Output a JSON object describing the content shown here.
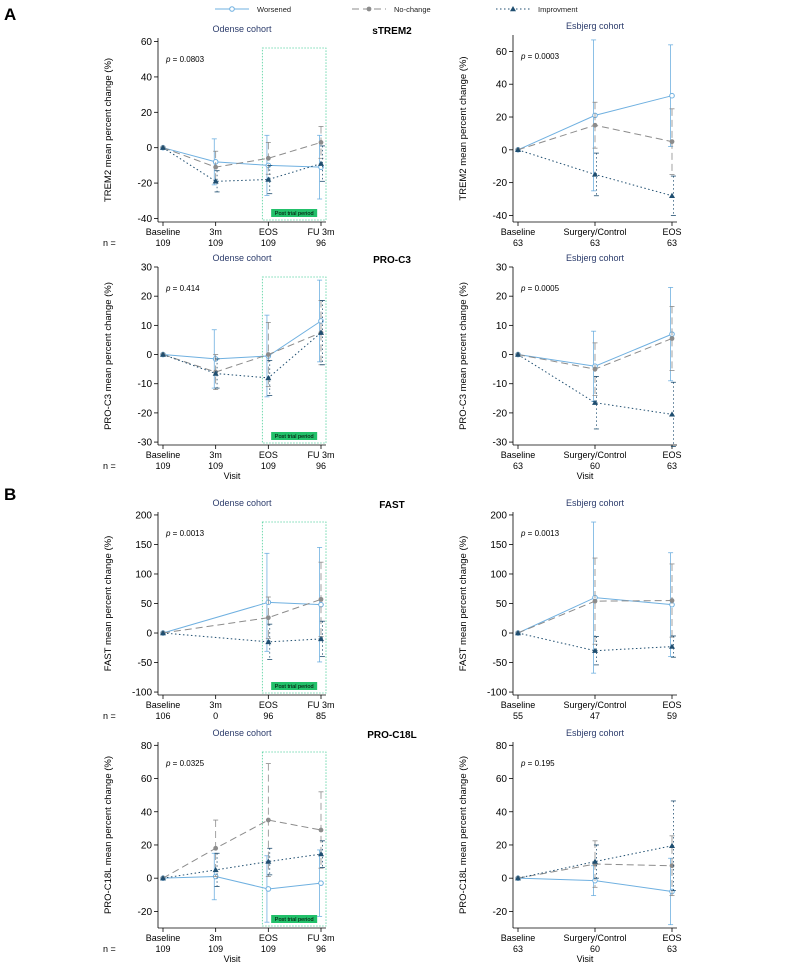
{
  "panel_labels": [
    "A",
    "B"
  ],
  "legend": [
    {
      "name": "Worsened",
      "color": "#6fb0e0",
      "dash": "solid",
      "marker": "circle-open"
    },
    {
      "name": "No-change",
      "color": "#8c8c8c",
      "dash": "dash",
      "marker": "circle"
    },
    {
      "name": "Improvment",
      "color": "#1f4e70",
      "dash": "dot",
      "marker": "triangle"
    }
  ],
  "colors": {
    "title": "#2b3b6b",
    "axis": "#000000",
    "trial_box": "#4ccf9a",
    "trial_label_bg": "#22c06a"
  },
  "n_prefix": "n =",
  "visit_label": "Visit",
  "post_trial_label": "Post trial period",
  "chart_data": [
    {
      "type": "line",
      "marker": "sTREM2",
      "subtitle": "Odense cohort",
      "ylabel": "TREM2 mean percent change (%)",
      "xlabel": "",
      "ylim": [
        -42,
        62
      ],
      "yticks": [
        -40,
        -20,
        0,
        20,
        40,
        60
      ],
      "categories": [
        "Baseline",
        "3m",
        "EOS",
        "FU 3m"
      ],
      "n": [
        "109",
        "109",
        "109",
        "96"
      ],
      "pvalue": "p = 0.0803",
      "post_trial": true,
      "series": [
        {
          "name": "Worsened",
          "values": [
            0,
            -8,
            -10,
            -11
          ],
          "errors": [
            0,
            13,
            17,
            18
          ]
        },
        {
          "name": "No-change",
          "values": [
            0,
            -11,
            -6,
            3
          ],
          "errors": [
            0,
            9,
            9,
            9
          ]
        },
        {
          "name": "Improvment",
          "values": [
            0,
            -19,
            -18,
            -9
          ],
          "errors": [
            0,
            6,
            8,
            10
          ]
        }
      ]
    },
    {
      "type": "line",
      "marker": "",
      "subtitle": "Esbjerg cohort",
      "ylabel": "TREM2 mean percent change (%)",
      "xlabel": "",
      "ylim": [
        -44,
        70
      ],
      "yticks": [
        -40,
        -20,
        0,
        20,
        40,
        60
      ],
      "categories": [
        "Baseline",
        "Surgery/Control",
        "EOS"
      ],
      "n": [
        "63",
        "63",
        "63"
      ],
      "pvalue": "p = 0.0003",
      "post_trial": false,
      "series": [
        {
          "name": "Worsened",
          "values": [
            0,
            21,
            33
          ],
          "errors": [
            0,
            46,
            31
          ]
        },
        {
          "name": "No-change",
          "values": [
            0,
            15,
            5
          ],
          "errors": [
            0,
            14,
            20
          ]
        },
        {
          "name": "Improvment",
          "values": [
            0,
            -15,
            -28
          ],
          "errors": [
            0,
            13,
            12
          ]
        }
      ]
    },
    {
      "type": "line",
      "marker": "PRO-C3",
      "subtitle": "Odense cohort",
      "ylabel": "PRO-C3 mean percent change (%)",
      "xlabel": "Visit",
      "ylim": [
        -31,
        30
      ],
      "yticks": [
        -30,
        -20,
        -10,
        0,
        10,
        20,
        30
      ],
      "categories": [
        "Baseline",
        "3m",
        "EOS",
        "FU 3m"
      ],
      "n": [
        "109",
        "109",
        "109",
        "96"
      ],
      "pvalue": "p = 0.414",
      "post_trial": true,
      "series": [
        {
          "name": "Worsened",
          "values": [
            0,
            -1.5,
            -0.5,
            11.5
          ],
          "errors": [
            0,
            10,
            14,
            14
          ]
        },
        {
          "name": "No-change",
          "values": [
            0,
            -6,
            0,
            7.5
          ],
          "errors": [
            0,
            6,
            11,
            11
          ]
        },
        {
          "name": "Improvment",
          "values": [
            0,
            -6.5,
            -8,
            7.5
          ],
          "errors": [
            0,
            5,
            6,
            11
          ]
        }
      ]
    },
    {
      "type": "line",
      "marker": "",
      "subtitle": "Esbjerg cohort",
      "ylabel": "PRO-C3 mean percent change (%)",
      "xlabel": "Visit",
      "ylim": [
        -31,
        30
      ],
      "yticks": [
        -30,
        -20,
        -10,
        0,
        10,
        20,
        30
      ],
      "categories": [
        "Baseline",
        "Surgery/Control",
        "EOS"
      ],
      "n": [
        "63",
        "60",
        "63"
      ],
      "pvalue": "p = 0.0005",
      "post_trial": false,
      "series": [
        {
          "name": "Worsened",
          "values": [
            0,
            -4,
            7
          ],
          "errors": [
            0,
            12,
            16
          ]
        },
        {
          "name": "No-change",
          "values": [
            0,
            -5,
            5.5
          ],
          "errors": [
            0,
            9,
            11
          ]
        },
        {
          "name": "Improvment",
          "values": [
            0,
            -16.5,
            -20.5
          ],
          "errors": [
            0,
            9,
            11
          ]
        }
      ]
    },
    {
      "type": "line",
      "marker": "FAST",
      "subtitle": "Odense cohort",
      "ylabel": "FAST mean percent change (%)",
      "xlabel": "",
      "ylim": [
        -105,
        205
      ],
      "yticks": [
        -100,
        -50,
        0,
        50,
        100,
        150,
        200
      ],
      "categories": [
        "Baseline",
        "3m",
        "EOS",
        "FU 3m"
      ],
      "n": [
        "106",
        "0",
        "96",
        "85"
      ],
      "pvalue": "p = 0.0013",
      "post_trial": true,
      "series": [
        {
          "name": "Worsened",
          "values": [
            0,
            null,
            52,
            48
          ],
          "errors": [
            0,
            null,
            83,
            97
          ]
        },
        {
          "name": "No-change",
          "values": [
            0,
            null,
            26,
            57
          ],
          "errors": [
            0,
            null,
            35,
            63
          ]
        },
        {
          "name": "Improvment",
          "values": [
            0,
            null,
            -15,
            -10
          ],
          "errors": [
            0,
            null,
            30,
            30
          ]
        }
      ]
    },
    {
      "type": "line",
      "marker": "",
      "subtitle": "Esbjerg cohort",
      "ylabel": "FAST mean percent change (%)",
      "xlabel": "",
      "ylim": [
        -105,
        205
      ],
      "yticks": [
        -100,
        -50,
        0,
        50,
        100,
        150,
        200
      ],
      "categories": [
        "Baseline",
        "Surgery/Control",
        "EOS"
      ],
      "n": [
        "55",
        "47",
        "59"
      ],
      "pvalue": "p = 0.0013",
      "post_trial": false,
      "series": [
        {
          "name": "Worsened",
          "values": [
            0,
            60,
            48
          ],
          "errors": [
            0,
            128,
            88
          ]
        },
        {
          "name": "No-change",
          "values": [
            0,
            54,
            55
          ],
          "errors": [
            0,
            73,
            62
          ]
        },
        {
          "name": "Improvment",
          "values": [
            0,
            -30,
            -23
          ],
          "errors": [
            0,
            24,
            18
          ]
        }
      ]
    },
    {
      "type": "line",
      "marker": "PRO-C18L",
      "subtitle": "Odense cohort",
      "ylabel": "PRO-C18L mean percent change (%)",
      "xlabel": "Visit",
      "ylim": [
        -30,
        82
      ],
      "yticks": [
        -20,
        0,
        20,
        40,
        60,
        80
      ],
      "categories": [
        "Baseline",
        "3m",
        "EOS",
        "FU 3m"
      ],
      "n": [
        "109",
        "109",
        "109",
        "96"
      ],
      "pvalue": "p = 0.0325",
      "post_trial": true,
      "series": [
        {
          "name": "Worsened",
          "values": [
            0,
            1,
            -6.5,
            -3
          ],
          "errors": [
            0,
            14,
            20,
            20
          ]
        },
        {
          "name": "No-change",
          "values": [
            0,
            18,
            35,
            29
          ],
          "errors": [
            0,
            17,
            34,
            23
          ]
        },
        {
          "name": "Improvment",
          "values": [
            0,
            5,
            10,
            14.5
          ],
          "errors": [
            0,
            10,
            8,
            8
          ]
        }
      ]
    },
    {
      "type": "line",
      "marker": "",
      "subtitle": "Esbjerg cohort",
      "ylabel": "PRO-C18L mean percent change (%)",
      "xlabel": "Visit",
      "ylim": [
        -30,
        82
      ],
      "yticks": [
        -20,
        0,
        20,
        40,
        60,
        80
      ],
      "categories": [
        "Baseline",
        "Surgery/Control",
        "EOS"
      ],
      "n": [
        "63",
        "60",
        "63"
      ],
      "pvalue": "p = 0.195",
      "post_trial": false,
      "series": [
        {
          "name": "Worsened",
          "values": [
            0,
            -1.5,
            -8
          ],
          "errors": [
            0,
            9,
            20
          ]
        },
        {
          "name": "No-change",
          "values": [
            0,
            8.5,
            7.5
          ],
          "errors": [
            0,
            14,
            18
          ]
        },
        {
          "name": "Improvment",
          "values": [
            0,
            10,
            19.5
          ],
          "errors": [
            0,
            10,
            27
          ]
        }
      ]
    }
  ]
}
